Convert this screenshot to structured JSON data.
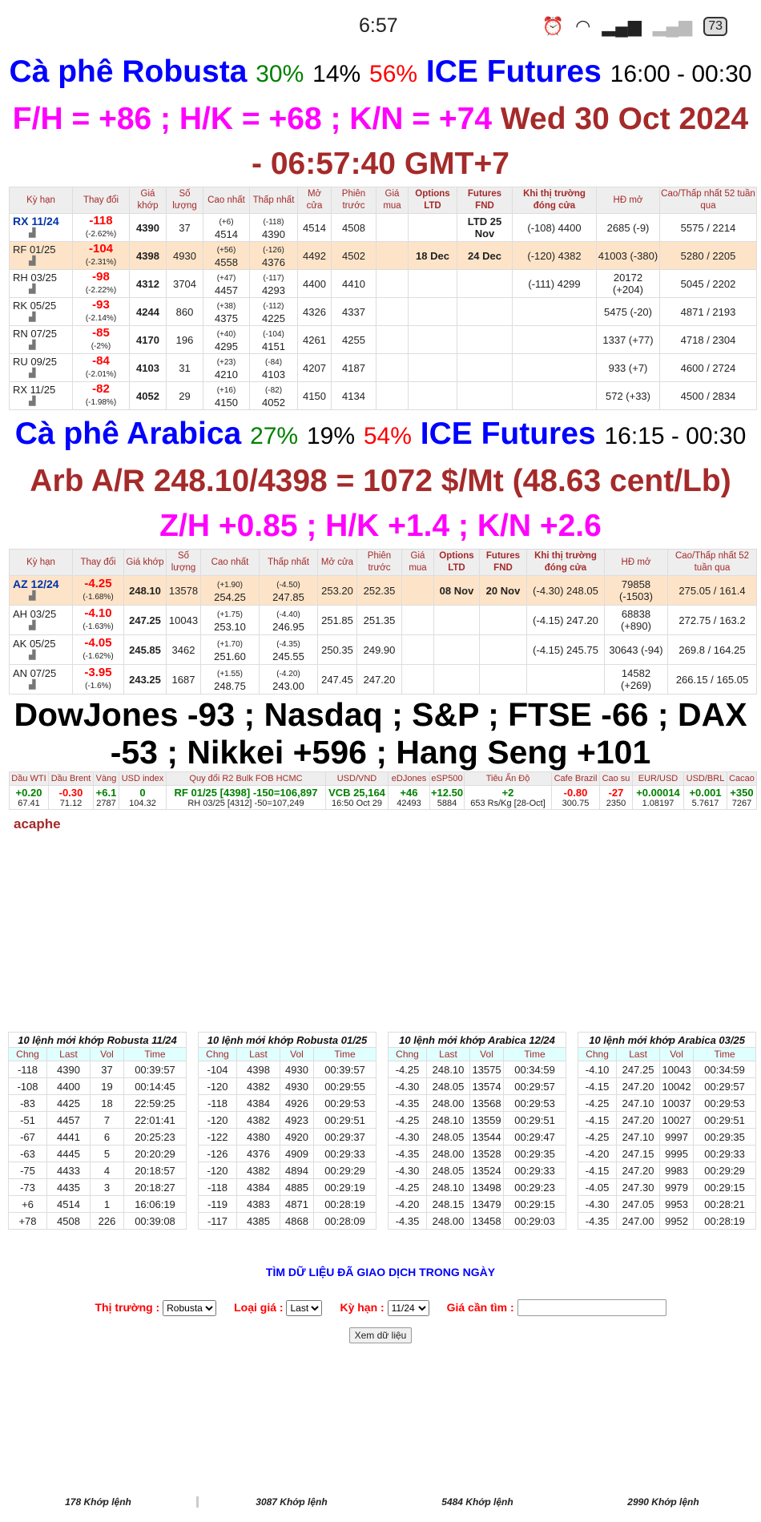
{
  "status_bar": {
    "time": "6:57",
    "battery": "73"
  },
  "robusta_title": {
    "name": "Cà phê Robusta",
    "pct_up": "30%",
    "pct_flat": "14%",
    "pct_down": "56%",
    "exchange": "ICE Futures",
    "hours": "16:00 - 00:30",
    "spreads": "F/H = +86 ; H/K = +68 ; K/N = +74",
    "datetime": "Wed 30 Oct 2024 - 06:57:40 GMT+7"
  },
  "robusta_headers": [
    "Kỳ hạn",
    "Thay đổi",
    "Giá khớp",
    "Số lượng",
    "Cao nhất",
    "Thấp nhất",
    "Mở cửa",
    "Phiên trước",
    "Giá mua",
    "Options LTD",
    "Futures FND",
    "Khi thị trường đóng cửa",
    "HĐ mở",
    "Cao/Thấp nhất 52 tuần qua"
  ],
  "robusta_rows": [
    {
      "contract": "RX 11/24",
      "change": "-118",
      "pct": "(-2.62%)",
      "price": "4390",
      "vol": "37",
      "high_chg": "(+6)",
      "high": "4514",
      "low_chg": "(-118)",
      "low": "4390",
      "open": "4514",
      "prev": "4508",
      "bid": "",
      "opt": "",
      "fnd": "LTD 25 Nov",
      "close": "(-108) 4400",
      "oi": "2685 (-9)",
      "range": "5575 / 2214"
    },
    {
      "contract": "RF 01/25",
      "change": "-104",
      "pct": "(-2.31%)",
      "price": "4398",
      "vol": "4930",
      "high_chg": "(+56)",
      "high": "4558",
      "low_chg": "(-126)",
      "low": "4376",
      "open": "4492",
      "prev": "4502",
      "bid": "",
      "opt": "18 Dec",
      "fnd": "24 Dec",
      "close": "(-120) 4382",
      "oi": "41003 (-380)",
      "range": "5280 / 2205"
    },
    {
      "contract": "RH 03/25",
      "change": "-98",
      "pct": "(-2.22%)",
      "price": "4312",
      "vol": "3704",
      "high_chg": "(+47)",
      "high": "4457",
      "low_chg": "(-117)",
      "low": "4293",
      "open": "4400",
      "prev": "4410",
      "bid": "",
      "opt": "",
      "fnd": "",
      "close": "(-111) 4299",
      "oi": "20172 (+204)",
      "range": "5045 / 2202"
    },
    {
      "contract": "RK 05/25",
      "change": "-93",
      "pct": "(-2.14%)",
      "price": "4244",
      "vol": "860",
      "high_chg": "(+38)",
      "high": "4375",
      "low_chg": "(-112)",
      "low": "4225",
      "open": "4326",
      "prev": "4337",
      "bid": "",
      "opt": "",
      "fnd": "",
      "close": "",
      "oi": "5475 (-20)",
      "range": "4871 / 2193"
    },
    {
      "contract": "RN 07/25",
      "change": "-85",
      "pct": "(-2%)",
      "price": "4170",
      "vol": "196",
      "high_chg": "(+40)",
      "high": "4295",
      "low_chg": "(-104)",
      "low": "4151",
      "open": "4261",
      "prev": "4255",
      "bid": "",
      "opt": "",
      "fnd": "",
      "close": "",
      "oi": "1337 (+77)",
      "range": "4718 / 2304"
    },
    {
      "contract": "RU 09/25",
      "change": "-84",
      "pct": "(-2.01%)",
      "price": "4103",
      "vol": "31",
      "high_chg": "(+23)",
      "high": "4210",
      "low_chg": "(-84)",
      "low": "4103",
      "open": "4207",
      "prev": "4187",
      "bid": "",
      "opt": "",
      "fnd": "",
      "close": "",
      "oi": "933 (+7)",
      "range": "4600 / 2724"
    },
    {
      "contract": "RX 11/25",
      "change": "-82",
      "pct": "(-1.98%)",
      "price": "4052",
      "vol": "29",
      "high_chg": "(+16)",
      "high": "4150",
      "low_chg": "(-82)",
      "low": "4052",
      "open": "4150",
      "prev": "4134",
      "bid": "",
      "opt": "",
      "fnd": "",
      "close": "",
      "oi": "572 (+33)",
      "range": "4500 / 2834"
    }
  ],
  "arabica_title": {
    "name": "Cà phê Arabica",
    "pct_up": "27%",
    "pct_flat": "19%",
    "pct_down": "54%",
    "exchange": "ICE Futures",
    "hours": "16:15 - 00:30",
    "conversion": "Arb A/R 248.10/4398 = 1072 $/Mt (48.63 cent/Lb)",
    "spreads": "Z/H +0.85 ; H/K +1.4 ; K/N +2.6"
  },
  "arabica_headers": [
    "Kỳ hạn",
    "Thay đổi",
    "Giá khớp",
    "Số lượng",
    "Cao nhất",
    "Thấp nhất",
    "Mở cửa",
    "Phiên trước",
    "Giá mua",
    "Options LTD",
    "Futures FND",
    "Khi thị trường đóng cửa",
    "HĐ mở",
    "Cao/Thấp nhất 52 tuần qua"
  ],
  "arabica_rows": [
    {
      "contract": "AZ 12/24",
      "change": "-4.25",
      "pct": "(-1.68%)",
      "price": "248.10",
      "vol": "13578",
      "high_chg": "(+1.90)",
      "high": "254.25",
      "low_chg": "(-4.50)",
      "low": "247.85",
      "open": "253.20",
      "prev": "252.35",
      "bid": "",
      "opt": "08 Nov",
      "fnd": "20 Nov",
      "close": "(-4.30) 248.05",
      "oi": "79858 (-1503)",
      "range": "275.05 / 161.4"
    },
    {
      "contract": "AH 03/25",
      "change": "-4.10",
      "pct": "(-1.63%)",
      "price": "247.25",
      "vol": "10043",
      "high_chg": "(+1.75)",
      "high": "253.10",
      "low_chg": "(-4.40)",
      "low": "246.95",
      "open": "251.85",
      "prev": "251.35",
      "bid": "",
      "opt": "",
      "fnd": "",
      "close": "(-4.15) 247.20",
      "oi": "68838 (+890)",
      "range": "272.75 / 163.2"
    },
    {
      "contract": "AK 05/25",
      "change": "-4.05",
      "pct": "(-1.62%)",
      "price": "245.85",
      "vol": "3462",
      "high_chg": "(+1.70)",
      "high": "251.60",
      "low_chg": "(-4.35)",
      "low": "245.55",
      "open": "250.35",
      "prev": "249.90",
      "bid": "",
      "opt": "",
      "fnd": "",
      "close": "(-4.15) 245.75",
      "oi": "30643 (-94)",
      "range": "269.8 / 164.25"
    },
    {
      "contract": "AN 07/25",
      "change": "-3.95",
      "pct": "(-1.6%)",
      "price": "243.25",
      "vol": "1687",
      "high_chg": "(+1.55)",
      "high": "248.75",
      "low_chg": "(-4.20)",
      "low": "243.00",
      "open": "247.45",
      "prev": "247.20",
      "bid": "",
      "opt": "",
      "fnd": "",
      "close": "",
      "oi": "14582 (+269)",
      "range": "266.15 / 165.05"
    }
  ],
  "indices_text": "DowJones -93 ; Nasdaq ; S&P ; FTSE -66 ; DAX -53 ; Nikkei +596 ; Hang Seng +101",
  "markets": [
    {
      "label": "Dầu WTI",
      "change": "+0.20",
      "value": "67.41",
      "color": "#008000"
    },
    {
      "label": "Dầu Brent",
      "change": "-0.30",
      "value": "71.12",
      "color": "#ff0000"
    },
    {
      "label": "Vàng",
      "change": "+6.1",
      "value": "2787",
      "color": "#008000"
    },
    {
      "label": "USD index",
      "change": "0",
      "value": "104.32",
      "color": "#008000"
    },
    {
      "label": "Quy đổi R2 Bulk FOB HCMC",
      "change": "RF 01/25 [4398] -150=106,897",
      "value": "RH 03/25 [4312] -50=107,249",
      "color": "#008000"
    },
    {
      "label": "USD/VND",
      "change": "VCB 25,164",
      "value": "16:50 Oct 29",
      "color": "#008000"
    },
    {
      "label": "eDJones",
      "change": "+46",
      "value": "42493",
      "color": "#008000"
    },
    {
      "label": "eSP500",
      "change": "+12.50",
      "value": "5884",
      "color": "#008000"
    },
    {
      "label": "Tiêu Ấn Độ",
      "change": "+2",
      "value": "653 Rs/Kg [28-Oct]",
      "color": "#008000"
    },
    {
      "label": "Cafe Brazil",
      "change": "-0.80",
      "value": "300.75",
      "color": "#ff0000"
    },
    {
      "label": "Cao su",
      "change": "-27",
      "value": "2350",
      "color": "#ff0000"
    },
    {
      "label": "EUR/USD",
      "change": "+0.00014",
      "value": "1.08197",
      "color": "#008000"
    },
    {
      "label": "USD/BRL",
      "change": "+0.001",
      "value": "5.7617",
      "color": "#008000"
    },
    {
      "label": "Cacao",
      "change": "+350",
      "value": "7267",
      "color": "#008000"
    }
  ],
  "brand": "acaphe",
  "trade_headers": [
    "Chng",
    "Last",
    "Vol",
    "Time"
  ],
  "trades": [
    {
      "title": "10 lệnh mới khớp Robusta 11/24",
      "rows": [
        [
          "-118",
          "4390",
          "37",
          "00:39:57"
        ],
        [
          "-108",
          "4400",
          "19",
          "00:14:45"
        ],
        [
          "-83",
          "4425",
          "18",
          "22:59:25"
        ],
        [
          "-51",
          "4457",
          "7",
          "22:01:41"
        ],
        [
          "-67",
          "4441",
          "6",
          "20:25:23"
        ],
        [
          "-63",
          "4445",
          "5",
          "20:20:29"
        ],
        [
          "-75",
          "4433",
          "4",
          "20:18:57"
        ],
        [
          "-73",
          "4435",
          "3",
          "20:18:27"
        ],
        [
          "+6",
          "4514",
          "1",
          "16:06:19"
        ],
        [
          "+78",
          "4508",
          "226",
          "00:39:08"
        ]
      ],
      "count": "178 Khớp lệnh"
    },
    {
      "title": "10 lệnh mới khớp Robusta 01/25",
      "rows": [
        [
          "-104",
          "4398",
          "4930",
          "00:39:57"
        ],
        [
          "-120",
          "4382",
          "4930",
          "00:29:55"
        ],
        [
          "-118",
          "4384",
          "4926",
          "00:29:53"
        ],
        [
          "-120",
          "4382",
          "4923",
          "00:29:51"
        ],
        [
          "-122",
          "4380",
          "4920",
          "00:29:37"
        ],
        [
          "-126",
          "4376",
          "4909",
          "00:29:33"
        ],
        [
          "-120",
          "4382",
          "4894",
          "00:29:29"
        ],
        [
          "-118",
          "4384",
          "4885",
          "00:29:19"
        ],
        [
          "-119",
          "4383",
          "4871",
          "00:28:19"
        ],
        [
          "-117",
          "4385",
          "4868",
          "00:28:09"
        ]
      ],
      "count": "3087 Khớp lệnh"
    },
    {
      "title": "10 lệnh mới khớp Arabica 12/24",
      "rows": [
        [
          "-4.25",
          "248.10",
          "13575",
          "00:34:59"
        ],
        [
          "-4.30",
          "248.05",
          "13574",
          "00:29:57"
        ],
        [
          "-4.35",
          "248.00",
          "13568",
          "00:29:53"
        ],
        [
          "-4.25",
          "248.10",
          "13559",
          "00:29:51"
        ],
        [
          "-4.30",
          "248.05",
          "13544",
          "00:29:47"
        ],
        [
          "-4.35",
          "248.00",
          "13528",
          "00:29:35"
        ],
        [
          "-4.30",
          "248.05",
          "13524",
          "00:29:33"
        ],
        [
          "-4.25",
          "248.10",
          "13498",
          "00:29:23"
        ],
        [
          "-4.20",
          "248.15",
          "13479",
          "00:29:15"
        ],
        [
          "-4.35",
          "248.00",
          "13458",
          "00:29:03"
        ]
      ],
      "count": "5484 Khớp lệnh"
    },
    {
      "title": "10 lệnh mới khớp Arabica 03/25",
      "rows": [
        [
          "-4.10",
          "247.25",
          "10043",
          "00:34:59"
        ],
        [
          "-4.15",
          "247.20",
          "10042",
          "00:29:57"
        ],
        [
          "-4.25",
          "247.10",
          "10037",
          "00:29:53"
        ],
        [
          "-4.15",
          "247.20",
          "10027",
          "00:29:51"
        ],
        [
          "-4.25",
          "247.10",
          "9997",
          "00:29:35"
        ],
        [
          "-4.20",
          "247.15",
          "9995",
          "00:29:33"
        ],
        [
          "-4.15",
          "247.20",
          "9983",
          "00:29:29"
        ],
        [
          "-4.05",
          "247.30",
          "9979",
          "00:29:15"
        ],
        [
          "-4.30",
          "247.05",
          "9953",
          "00:28:21"
        ],
        [
          "-4.35",
          "247.00",
          "9952",
          "00:28:19"
        ]
      ],
      "count": "2990 Khớp lệnh"
    }
  ],
  "search": {
    "title": "TÌM DỮ LIỆU ĐÃ GIAO DỊCH TRONG NGÀY",
    "market_label": "Thị trường :",
    "market_value": "Robusta",
    "price_type_label": "Loại giá :",
    "price_type_value": "Last",
    "term_label": "Kỳ hạn :",
    "term_value": "11/24",
    "price_label": "Giá cần tìm :",
    "price_value": "",
    "submit": "Xem dữ liệu"
  }
}
